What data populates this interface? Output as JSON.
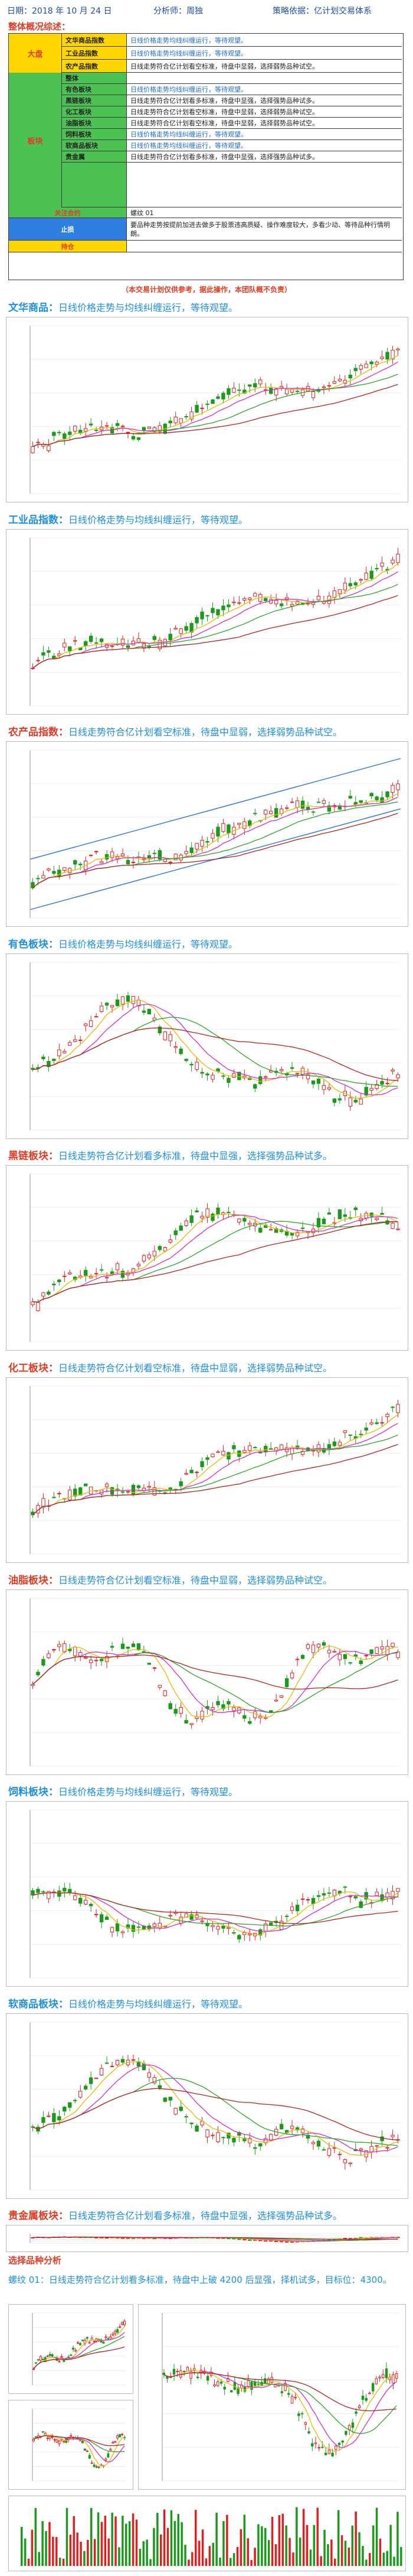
{
  "header": {
    "date": "日期：2018 年 10 月 24 日",
    "analyst": "分析师：周独",
    "strategy": "策略依据：亿计划交易体系"
  },
  "overview_title": "整体概况综述：",
  "summary": {
    "groups": {
      "market": "大盘",
      "sectors": "板块"
    },
    "rows": [
      {
        "name": "文华商品指数",
        "text": "日线价格走势均线纠缠运行，等待观望。",
        "color": "blue"
      },
      {
        "name": "工业品指数",
        "text": "日线价格走势均线纠缠运行，等待观望。",
        "color": "blue"
      },
      {
        "name": "农产品指数",
        "text": "日线走势符合亿计划看空标准，待盘中显弱，选择弱势品种试空。",
        "color": "dark"
      },
      {
        "name": "整体",
        "text": "",
        "color": "dark"
      },
      {
        "name": "有色板块",
        "text": "日线价格走势均线纠缠运行，等待观望。",
        "color": "blue"
      },
      {
        "name": "黑链板块",
        "text": "日线走势符合亿计划看多标准，待盘中显强，选择强势品种试多。",
        "color": "dark"
      },
      {
        "name": "化工板块",
        "text": "日线走势符合亿计划看空标准，待盘中显弱，选择弱势品种试空。",
        "color": "dark"
      },
      {
        "name": "油脂板块",
        "text": "日线走势符合亿计划看空标准，待盘中显弱，选择弱势品种试空。",
        "color": "dark"
      },
      {
        "name": "饲料板块",
        "text": "日线价格走势均线纠缠运行，等待观望。",
        "color": "blue"
      },
      {
        "name": "软商品板块",
        "text": "日线价格走势均线纠缠运行，等待观望。",
        "color": "blue"
      },
      {
        "name": "贵金属",
        "text": "日线走势符合亿计划看多标准，待盘中显强，选择强势品种试多。",
        "color": "dark"
      }
    ],
    "focus_label": "关注合约",
    "focus_value": "螺纹 01",
    "trend_label": "止损",
    "trend_text": "要品种走势按提前加进去做多于股票违高质疑、操作难度较大，多看少动、等待品种行情明朗。",
    "hold_label": "持仓",
    "hold_value": ""
  },
  "disclaimer": "（本交易计划仅供参考，据此操作，本团队概不负责）",
  "sections": [
    {
      "name": "文华商品：",
      "text": "日线价格走势与均线纠缠运行，等待观望。",
      "name_color": "blue"
    },
    {
      "name": "工业品指数：",
      "text": "日线价格走势与均线纠缠运行，等待观望。",
      "name_color": "blue"
    },
    {
      "name": "农产品指数：",
      "text": "日线走势符合亿计划看空标准，待盘中显弱，选择弱势品种试空。",
      "name_color": "red"
    },
    {
      "name": "有色板块：",
      "text": "日线价格走势与均线纠缠运行，等待观望。",
      "name_color": "blue"
    },
    {
      "name": "黑链板块：",
      "text": "日线走势符合亿计划看多标准，待盘中显强，选择强势品种试多。",
      "name_color": "red"
    },
    {
      "name": "化工板块：",
      "text": "日线走势符合亿计划看空标准，待盘中显弱，选择弱势品种试空。",
      "name_color": "red"
    },
    {
      "name": "油脂板块：",
      "text": "日线走势符合亿计划看空标准，待盘中显弱，选择弱势品种试空。",
      "name_color": "red"
    },
    {
      "name": "饲料板块：",
      "text": "日线价格走势与均线纠缠运行，等待观望。",
      "name_color": "blue"
    },
    {
      "name": "软商品板块：",
      "text": "日线价格走势与均线纠缠运行，等待观望。",
      "name_color": "blue"
    },
    {
      "name": "贵金属板块：",
      "text": "日线走势符合亿计划看多标准，待盘中显强，选择强势品种试多。",
      "name_color": "red"
    }
  ],
  "selection": {
    "title": "选择品种分析",
    "line": "螺纹 01：日线走势符合亿计划看多标准，待盘中上破 4200 后显强，择机试多，目标位：4300。"
  },
  "chart_data": [
    {
      "type": "candlestick",
      "trend": "up",
      "count": 70,
      "ma_colors": [
        "#e8b800",
        "#d12bd1",
        "#2aa52a",
        "#b52020"
      ]
    },
    {
      "type": "candlestick",
      "trend": "up",
      "count": 70,
      "ma_colors": [
        "#e8b800",
        "#d12bd1",
        "#2aa52a",
        "#b52020"
      ]
    },
    {
      "type": "candlestick",
      "trend": "up_channel",
      "count": 70,
      "ma_colors": [
        "#e8b800",
        "#d12bd1",
        "#2aa52a",
        "#b52020"
      ],
      "channel_color": "#3a7bd5"
    },
    {
      "type": "candlestick",
      "trend": "peak_then_down",
      "count": 70,
      "ma_colors": [
        "#e8b800",
        "#d12bd1",
        "#2aa52a",
        "#b52020"
      ]
    },
    {
      "type": "candlestick",
      "trend": "rise_then_flat",
      "count": 70,
      "ma_colors": [
        "#e8b800",
        "#d12bd1",
        "#2aa52a",
        "#b52020"
      ]
    },
    {
      "type": "candlestick",
      "trend": "up",
      "count": 70,
      "ma_colors": [
        "#e8b800",
        "#d12bd1",
        "#2aa52a",
        "#b52020"
      ]
    },
    {
      "type": "candlestick",
      "trend": "volatile",
      "count": 70,
      "ma_colors": [
        "#e8b800",
        "#d12bd1",
        "#2aa52a",
        "#b52020"
      ]
    },
    {
      "type": "candlestick",
      "trend": "down_then_up",
      "count": 70,
      "ma_colors": [
        "#e8b800",
        "#d12bd1",
        "#2aa52a",
        "#b52020"
      ]
    },
    {
      "type": "candlestick",
      "trend": "peak_then_down",
      "count": 70,
      "ma_colors": [
        "#e8b800",
        "#d12bd1",
        "#2aa52a",
        "#b52020"
      ]
    },
    {
      "type": "candlestick",
      "trend": "dip_then_up",
      "count": 70,
      "ma_colors": [
        "#e8b800",
        "#d12bd1",
        "#2aa52a",
        "#b52020"
      ]
    }
  ]
}
